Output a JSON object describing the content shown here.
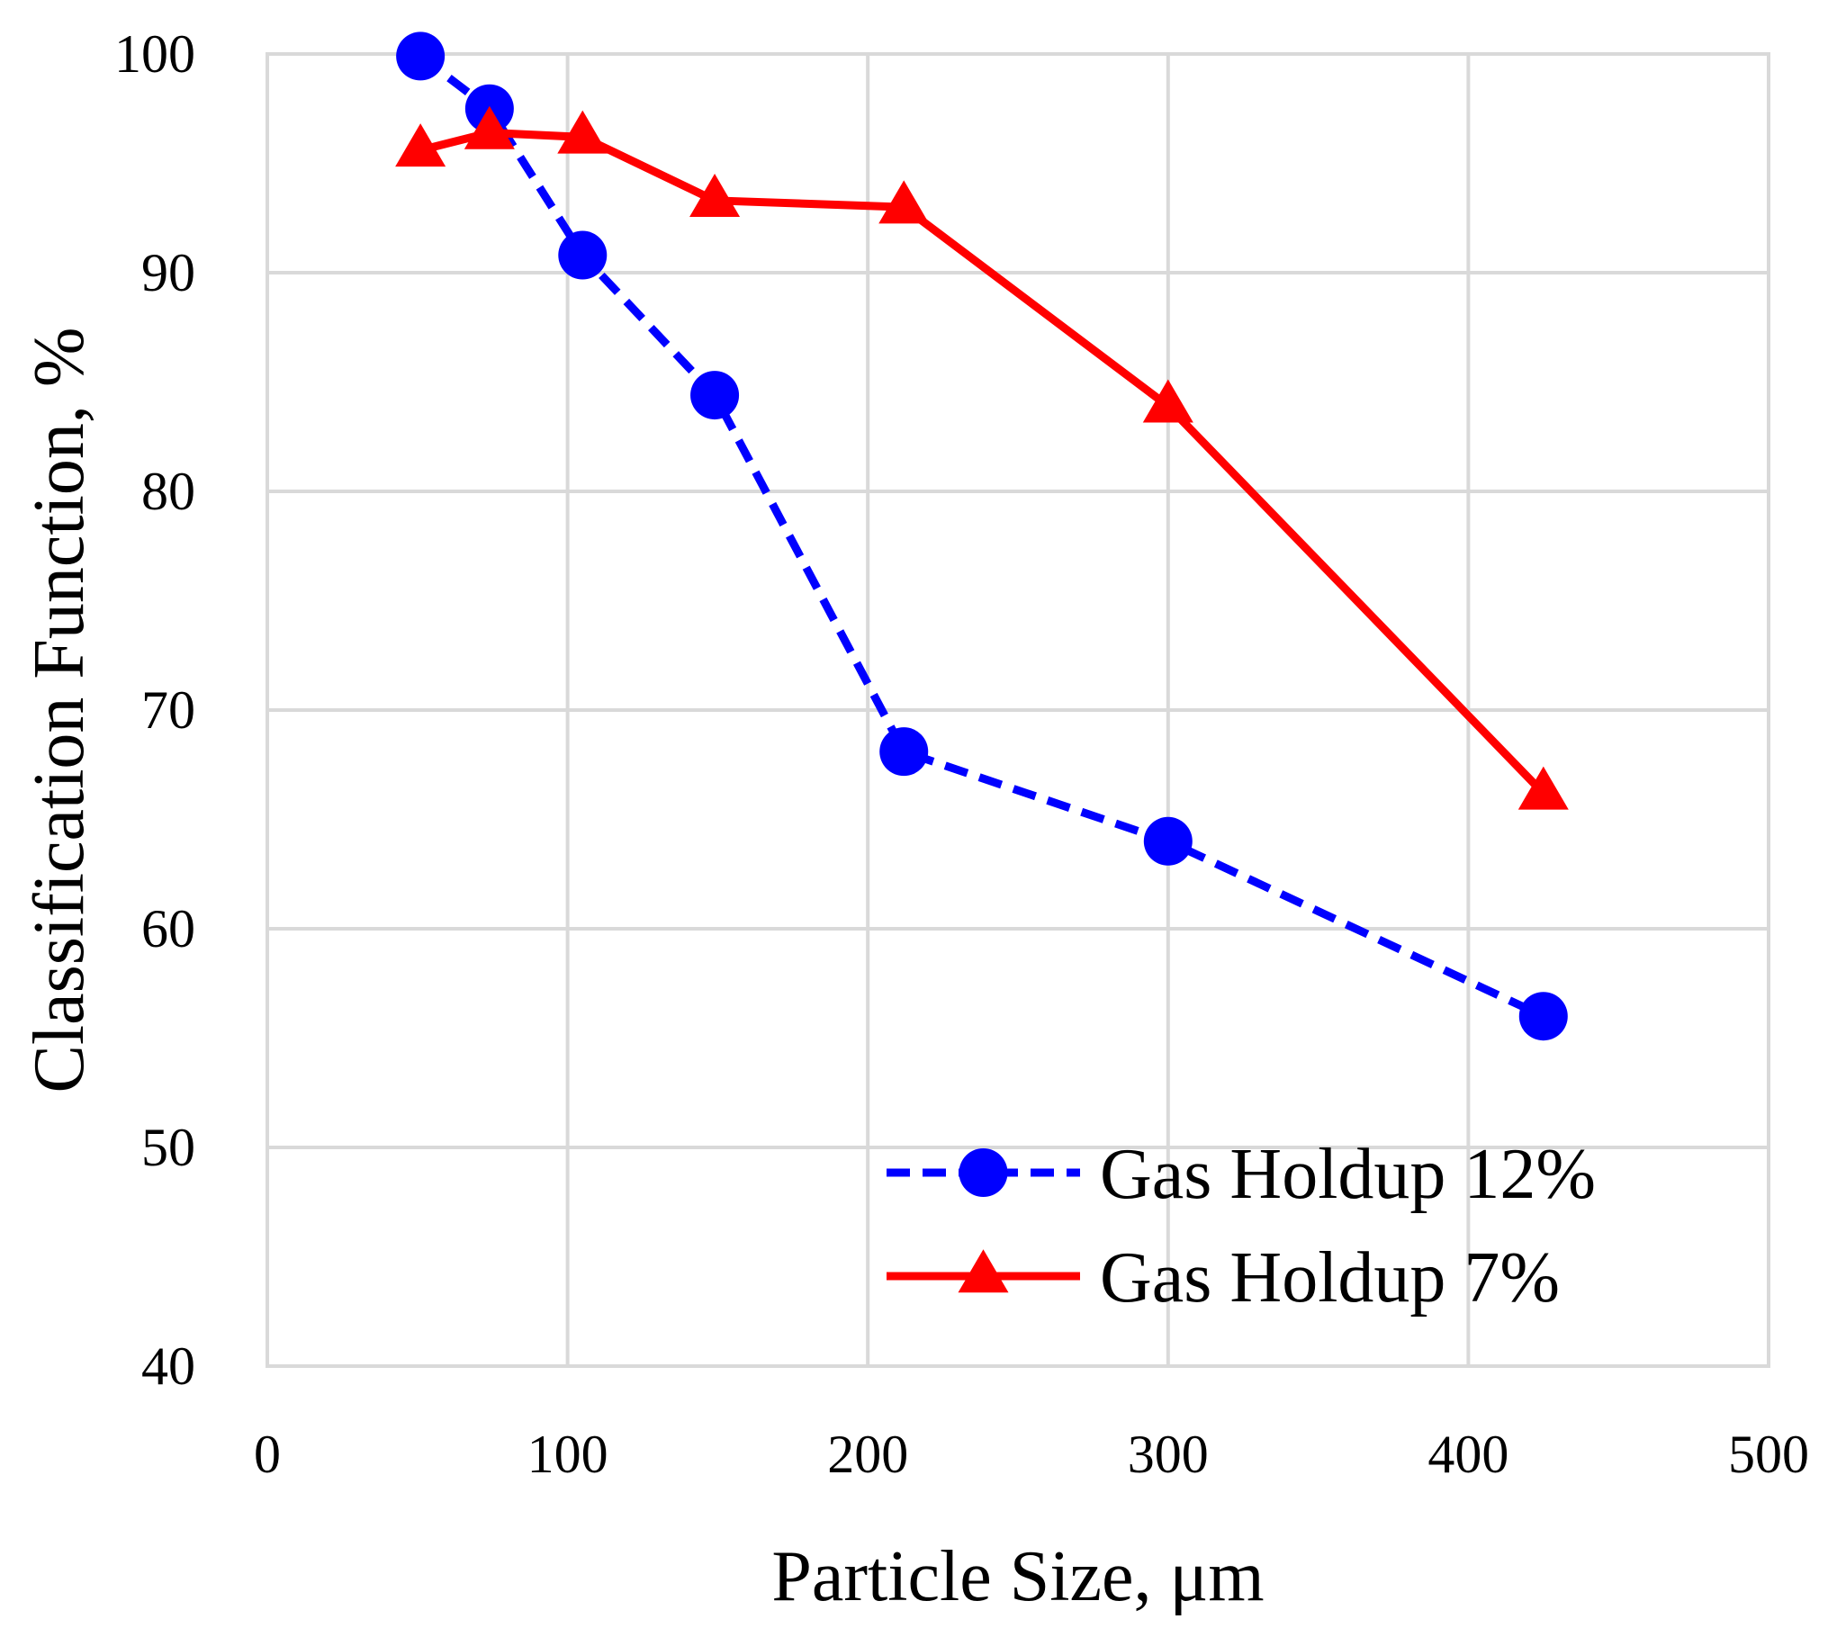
{
  "chart_data": {
    "type": "line",
    "title": "",
    "xlabel": "Particle Size, μm",
    "ylabel": "Classification Function, %",
    "xlim": [
      0,
      500
    ],
    "ylim": [
      40,
      100
    ],
    "x_ticks": [
      0,
      100,
      200,
      300,
      400,
      500
    ],
    "y_ticks": [
      40,
      50,
      60,
      70,
      80,
      90,
      100
    ],
    "grid": true,
    "legend_position": "bottom-right",
    "series": [
      {
        "name": "Gas Holdup 12%",
        "color": "#0000ff",
        "line_style": "dashed",
        "marker": "circle",
        "x": [
          51,
          74,
          105,
          149,
          212,
          300,
          425
        ],
        "y": [
          99.9,
          97.5,
          90.8,
          84.4,
          68.1,
          64.0,
          56.0
        ]
      },
      {
        "name": "Gas Holdup 7%",
        "color": "#ff0000",
        "line_style": "solid",
        "marker": "triangle",
        "x": [
          51,
          74,
          105,
          149,
          212,
          300,
          425
        ],
        "y": [
          95.6,
          96.4,
          96.2,
          93.3,
          93.0,
          83.9,
          66.2
        ]
      }
    ]
  }
}
